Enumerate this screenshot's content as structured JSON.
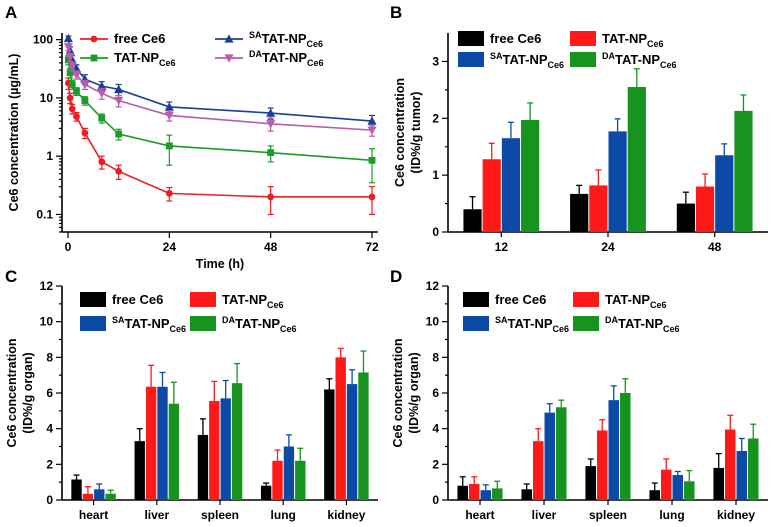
{
  "figure": {
    "colors": {
      "free": "#ee1c24",
      "tat": "#1a9c2a",
      "sa": "#1c3f94",
      "da": "#b95cab",
      "black": "#000000",
      "red": "#ff1a1a",
      "blue": "#0d4aa8",
      "green": "#17941f"
    }
  },
  "chart_data": [
    {
      "panel": "A",
      "type": "line",
      "yscale": "log",
      "xlabel": "Time (h)",
      "ylabel": "Ce6 concentration (µg/mL)",
      "xlim": [
        0,
        72
      ],
      "ylim": [
        0.05,
        130
      ],
      "xticks": [
        "0",
        "24",
        "48",
        "72"
      ],
      "xtick_values": [
        0,
        24,
        48,
        72
      ],
      "yticks": [
        "0.1",
        "1",
        "10",
        "100"
      ],
      "ytick_values": [
        0.1,
        1,
        10,
        100
      ],
      "legend_position": "top-right",
      "series": [
        {
          "name": "free Ce6",
          "base": "free Ce6",
          "sup": "",
          "sub": "",
          "color_key": "free",
          "marker": "circle",
          "x": [
            0.083,
            0.5,
            1,
            2,
            4,
            8,
            12,
            24,
            48,
            72
          ],
          "values": [
            18,
            10,
            6.5,
            4.8,
            2.5,
            0.8,
            0.55,
            0.23,
            0.2,
            0.2
          ],
          "errors": [
            4,
            2,
            1.2,
            0.8,
            0.5,
            0.2,
            0.15,
            0.06,
            0.1,
            0.1
          ]
        },
        {
          "name": "TAT-NPCe6",
          "base": "TAT-NP",
          "sup": "",
          "sub": "Ce6",
          "color_key": "tat",
          "marker": "square",
          "x": [
            0.083,
            0.5,
            1,
            2,
            4,
            8,
            12,
            24,
            48,
            72
          ],
          "values": [
            45,
            27,
            17,
            13,
            9,
            4.5,
            2.4,
            1.5,
            1.15,
            0.85
          ],
          "errors": [
            8,
            5,
            3,
            2,
            1.5,
            0.8,
            0.5,
            0.8,
            0.35,
            0.5
          ]
        },
        {
          "name": "SATAT-NPCe6",
          "base": "TAT-NP",
          "sup": "SA",
          "sub": "Ce6",
          "color_key": "sa",
          "marker": "triangle-up",
          "x": [
            0.083,
            0.5,
            1,
            2,
            4,
            8,
            12,
            24,
            48,
            72
          ],
          "values": [
            105,
            65,
            45,
            32,
            21,
            16,
            14,
            7,
            5.5,
            4
          ],
          "errors": [
            10,
            10,
            8,
            5,
            4,
            3,
            3,
            1.5,
            1.2,
            1
          ]
        },
        {
          "name": "DATAT-NPCe6",
          "base": "TAT-NP",
          "sup": "DA",
          "sub": "Ce6",
          "color_key": "da",
          "marker": "triangle-down",
          "x": [
            0.083,
            0.5,
            1,
            2,
            4,
            8,
            12,
            24,
            48,
            72
          ],
          "values": [
            75,
            50,
            35,
            25,
            17,
            12,
            9,
            5,
            3.6,
            2.8
          ],
          "errors": [
            10,
            8,
            6,
            4,
            3,
            2.5,
            2,
            1,
            0.9,
            0.6
          ]
        }
      ]
    },
    {
      "panel": "B",
      "type": "bar",
      "xlabel": "",
      "ylabel": "Ce6 concentration (ID%/g tumor)",
      "ylim": [
        0,
        3.5
      ],
      "yticks": [
        "0",
        "1",
        "2",
        "3"
      ],
      "ytick_values": [
        0,
        1,
        2,
        3
      ],
      "categories": [
        "12",
        "24",
        "48"
      ],
      "legend_position": "top-left",
      "series": [
        {
          "name": "free Ce6",
          "base": "free Ce6",
          "sup": "",
          "sub": "",
          "color_key": "black",
          "values": [
            0.4,
            0.67,
            0.5
          ],
          "errors": [
            0.22,
            0.15,
            0.2
          ]
        },
        {
          "name": "TAT-NPCe6",
          "base": "TAT-NP",
          "sup": "",
          "sub": "Ce6",
          "color_key": "red",
          "values": [
            1.28,
            0.82,
            0.8
          ],
          "errors": [
            0.28,
            0.27,
            0.22
          ]
        },
        {
          "name": "SATAT-NPCe6",
          "base": "TAT-NP",
          "sup": "SA",
          "sub": "Ce6",
          "color_key": "blue",
          "values": [
            1.65,
            1.77,
            1.35
          ],
          "errors": [
            0.28,
            0.22,
            0.2
          ]
        },
        {
          "name": "DATAT-NPCe6",
          "base": "TAT-NP",
          "sup": "DA",
          "sub": "Ce6",
          "color_key": "green",
          "values": [
            1.97,
            2.55,
            2.13
          ],
          "errors": [
            0.3,
            0.32,
            0.28
          ]
        }
      ]
    },
    {
      "panel": "C",
      "type": "bar",
      "xlabel": "",
      "ylabel": "Ce6 concentration (ID%/g organ)",
      "ylim": [
        0,
        12
      ],
      "yticks": [
        "0",
        "2",
        "4",
        "6",
        "8",
        "10",
        "12"
      ],
      "ytick_values": [
        0,
        2,
        4,
        6,
        8,
        10,
        12
      ],
      "categories": [
        "heart",
        "liver",
        "spleen",
        "lung",
        "kidney"
      ],
      "legend_position": "top-left",
      "series": [
        {
          "name": "free Ce6",
          "base": "free Ce6",
          "sup": "",
          "sub": "",
          "color_key": "black",
          "values": [
            1.15,
            3.3,
            3.65,
            0.8,
            6.2
          ],
          "errors": [
            0.25,
            0.7,
            0.9,
            0.15,
            0.6
          ]
        },
        {
          "name": "TAT-NPCe6",
          "base": "TAT-NP",
          "sup": "",
          "sub": "Ce6",
          "color_key": "red",
          "values": [
            0.35,
            6.35,
            5.55,
            2.2,
            8.0
          ],
          "errors": [
            0.4,
            1.2,
            1.1,
            0.6,
            0.5
          ]
        },
        {
          "name": "SATAT-NPCe6",
          "base": "TAT-NP",
          "sup": "SA",
          "sub": "Ce6",
          "color_key": "blue",
          "values": [
            0.6,
            6.35,
            5.7,
            3.0,
            6.5
          ],
          "errors": [
            0.3,
            0.8,
            1.0,
            0.65,
            0.8
          ]
        },
        {
          "name": "DATAT-NPCe6",
          "base": "TAT-NP",
          "sup": "DA",
          "sub": "Ce6",
          "color_key": "green",
          "values": [
            0.35,
            5.4,
            6.55,
            2.2,
            7.15
          ],
          "errors": [
            0.2,
            1.2,
            1.1,
            0.7,
            1.2
          ]
        }
      ]
    },
    {
      "panel": "D",
      "type": "bar",
      "xlabel": "",
      "ylabel": "Ce6 concentration (ID%/g organ)",
      "ylim": [
        0,
        12
      ],
      "yticks": [
        "0",
        "2",
        "4",
        "6",
        "8",
        "10",
        "12"
      ],
      "ytick_values": [
        0,
        2,
        4,
        6,
        8,
        10,
        12
      ],
      "categories": [
        "heart",
        "liver",
        "spleen",
        "lung",
        "kidney"
      ],
      "legend_position": "top-left",
      "series": [
        {
          "name": "free Ce6",
          "base": "free Ce6",
          "sup": "",
          "sub": "",
          "color_key": "black",
          "values": [
            0.8,
            0.6,
            1.9,
            0.55,
            1.8
          ],
          "errors": [
            0.5,
            0.3,
            0.4,
            0.4,
            0.8
          ]
        },
        {
          "name": "TAT-NPCe6",
          "base": "TAT-NP",
          "sup": "",
          "sub": "Ce6",
          "color_key": "red",
          "values": [
            0.9,
            3.3,
            3.9,
            1.7,
            3.95
          ],
          "errors": [
            0.4,
            0.7,
            0.6,
            0.6,
            0.8
          ]
        },
        {
          "name": "SATAT-NPCe6",
          "base": "TAT-NP",
          "sup": "SA",
          "sub": "Ce6",
          "color_key": "blue",
          "values": [
            0.55,
            4.9,
            5.6,
            1.4,
            2.75
          ],
          "errors": [
            0.3,
            0.5,
            0.8,
            0.2,
            0.7
          ]
        },
        {
          "name": "DATAT-NPCe6",
          "base": "TAT-NP",
          "sup": "DA",
          "sub": "Ce6",
          "color_key": "green",
          "values": [
            0.65,
            5.2,
            6.0,
            1.05,
            3.45
          ],
          "errors": [
            0.4,
            0.4,
            0.8,
            0.6,
            0.8
          ]
        }
      ]
    }
  ]
}
